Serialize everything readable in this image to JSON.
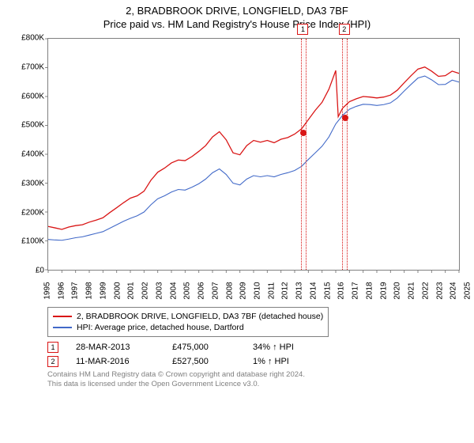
{
  "title_line1": "2, BRADBROOK DRIVE, LONGFIELD, DA3 7BF",
  "title_line2": "Price paid vs. HM Land Registry's House Price Index (HPI)",
  "chart": {
    "type": "line",
    "background_color": "#ffffff",
    "axis_color": "#808080",
    "x": {
      "min": 1995,
      "max": 2025,
      "tick_step": 1
    },
    "y": {
      "min": 0,
      "max": 800000,
      "tick_step": 100000,
      "prefix": "£",
      "suffix_k": "K"
    },
    "y_ticks": [
      "£0",
      "£100K",
      "£200K",
      "£300K",
      "£400K",
      "£500K",
      "£600K",
      "£700K",
      "£800K"
    ],
    "x_ticks": [
      "1995",
      "1996",
      "1997",
      "1998",
      "1999",
      "2000",
      "2001",
      "2002",
      "2003",
      "2004",
      "2005",
      "2006",
      "2007",
      "2008",
      "2009",
      "2010",
      "2011",
      "2012",
      "2013",
      "2014",
      "2015",
      "2016",
      "2017",
      "2018",
      "2019",
      "2020",
      "2021",
      "2022",
      "2023",
      "2024",
      "2025"
    ],
    "series": [
      {
        "name": "property",
        "color": "#d91414",
        "stroke_width": 1.3,
        "points": [
          [
            1995,
            150000
          ],
          [
            1995.5,
            145000
          ],
          [
            1996,
            140000
          ],
          [
            1996.5,
            148000
          ],
          [
            1997,
            153000
          ],
          [
            1997.5,
            156000
          ],
          [
            1998,
            165000
          ],
          [
            1998.5,
            172000
          ],
          [
            1999,
            180000
          ],
          [
            1999.5,
            198000
          ],
          [
            2000,
            215000
          ],
          [
            2000.5,
            232000
          ],
          [
            2001,
            248000
          ],
          [
            2001.5,
            256000
          ],
          [
            2002,
            272000
          ],
          [
            2002.5,
            310000
          ],
          [
            2003,
            338000
          ],
          [
            2003.5,
            352000
          ],
          [
            2004,
            370000
          ],
          [
            2004.5,
            380000
          ],
          [
            2005,
            378000
          ],
          [
            2005.5,
            392000
          ],
          [
            2006,
            410000
          ],
          [
            2006.5,
            430000
          ],
          [
            2007,
            460000
          ],
          [
            2007.5,
            478000
          ],
          [
            2008,
            450000
          ],
          [
            2008.5,
            405000
          ],
          [
            2009,
            398000
          ],
          [
            2009.5,
            430000
          ],
          [
            2010,
            448000
          ],
          [
            2010.5,
            442000
          ],
          [
            2011,
            448000
          ],
          [
            2011.5,
            440000
          ],
          [
            2012,
            452000
          ],
          [
            2012.5,
            458000
          ],
          [
            2013,
            470000
          ],
          [
            2013.5,
            488000
          ],
          [
            2014,
            520000
          ],
          [
            2014.5,
            552000
          ],
          [
            2015,
            580000
          ],
          [
            2015.5,
            625000
          ],
          [
            2016,
            690000
          ],
          [
            2016.18,
            530000
          ],
          [
            2016.5,
            560000
          ],
          [
            2017,
            582000
          ],
          [
            2017.5,
            592000
          ],
          [
            2018,
            600000
          ],
          [
            2018.5,
            598000
          ],
          [
            2019,
            595000
          ],
          [
            2019.5,
            598000
          ],
          [
            2020,
            605000
          ],
          [
            2020.5,
            622000
          ],
          [
            2021,
            648000
          ],
          [
            2021.5,
            672000
          ],
          [
            2022,
            695000
          ],
          [
            2022.5,
            702000
          ],
          [
            2023,
            688000
          ],
          [
            2023.5,
            670000
          ],
          [
            2024,
            672000
          ],
          [
            2024.5,
            688000
          ],
          [
            2025,
            680000
          ]
        ]
      },
      {
        "name": "hpi",
        "color": "#4169c8",
        "stroke_width": 1.1,
        "points": [
          [
            1995,
            105000
          ],
          [
            1995.5,
            103000
          ],
          [
            1996,
            102000
          ],
          [
            1996.5,
            106000
          ],
          [
            1997,
            111000
          ],
          [
            1997.5,
            114000
          ],
          [
            1998,
            120000
          ],
          [
            1998.5,
            126000
          ],
          [
            1999,
            132000
          ],
          [
            1999.5,
            144000
          ],
          [
            2000,
            156000
          ],
          [
            2000.5,
            168000
          ],
          [
            2001,
            178000
          ],
          [
            2001.5,
            187000
          ],
          [
            2002,
            200000
          ],
          [
            2002.5,
            225000
          ],
          [
            2003,
            246000
          ],
          [
            2003.5,
            256000
          ],
          [
            2004,
            269000
          ],
          [
            2004.5,
            278000
          ],
          [
            2005,
            276000
          ],
          [
            2005.5,
            286000
          ],
          [
            2006,
            298000
          ],
          [
            2006.5,
            314000
          ],
          [
            2007,
            336000
          ],
          [
            2007.5,
            349000
          ],
          [
            2008,
            330000
          ],
          [
            2008.5,
            300000
          ],
          [
            2009,
            294000
          ],
          [
            2009.5,
            314000
          ],
          [
            2010,
            326000
          ],
          [
            2010.5,
            322000
          ],
          [
            2011,
            326000
          ],
          [
            2011.5,
            322000
          ],
          [
            2012,
            330000
          ],
          [
            2012.5,
            336000
          ],
          [
            2013,
            344000
          ],
          [
            2013.5,
            358000
          ],
          [
            2014,
            382000
          ],
          [
            2014.5,
            405000
          ],
          [
            2015,
            428000
          ],
          [
            2015.5,
            460000
          ],
          [
            2016,
            505000
          ],
          [
            2016.5,
            535000
          ],
          [
            2017,
            556000
          ],
          [
            2017.5,
            566000
          ],
          [
            2018,
            573000
          ],
          [
            2018.5,
            572000
          ],
          [
            2019,
            569000
          ],
          [
            2019.5,
            572000
          ],
          [
            2020,
            578000
          ],
          [
            2020.5,
            595000
          ],
          [
            2021,
            619000
          ],
          [
            2021.5,
            642000
          ],
          [
            2022,
            664000
          ],
          [
            2022.5,
            671000
          ],
          [
            2023,
            658000
          ],
          [
            2023.5,
            641000
          ],
          [
            2024,
            642000
          ],
          [
            2024.5,
            657000
          ],
          [
            2025,
            650000
          ]
        ]
      }
    ],
    "event_markers": [
      {
        "label": "1",
        "x": 2013.24,
        "band_width": 0.4,
        "color": "#d91414",
        "dot_y": 475000
      },
      {
        "label": "2",
        "x": 2016.19,
        "band_width": 0.4,
        "color": "#d91414",
        "dot_y": 527500
      }
    ]
  },
  "legend": [
    {
      "color": "#d91414",
      "text": "2, BRADBROOK DRIVE, LONGFIELD, DA3 7BF (detached house)"
    },
    {
      "color": "#4169c8",
      "text": "HPI: Average price, detached house, Dartford"
    }
  ],
  "events_table": [
    {
      "label": "1",
      "color": "#d91414",
      "date": "28-MAR-2013",
      "price": "£475,000",
      "delta": "34% ↑ HPI"
    },
    {
      "label": "2",
      "color": "#d91414",
      "date": "11-MAR-2016",
      "price": "£527,500",
      "delta": "1% ↑ HPI"
    }
  ],
  "footer_line1": "Contains HM Land Registry data © Crown copyright and database right 2024.",
  "footer_line2": "This data is licensed under the Open Government Licence v3.0."
}
